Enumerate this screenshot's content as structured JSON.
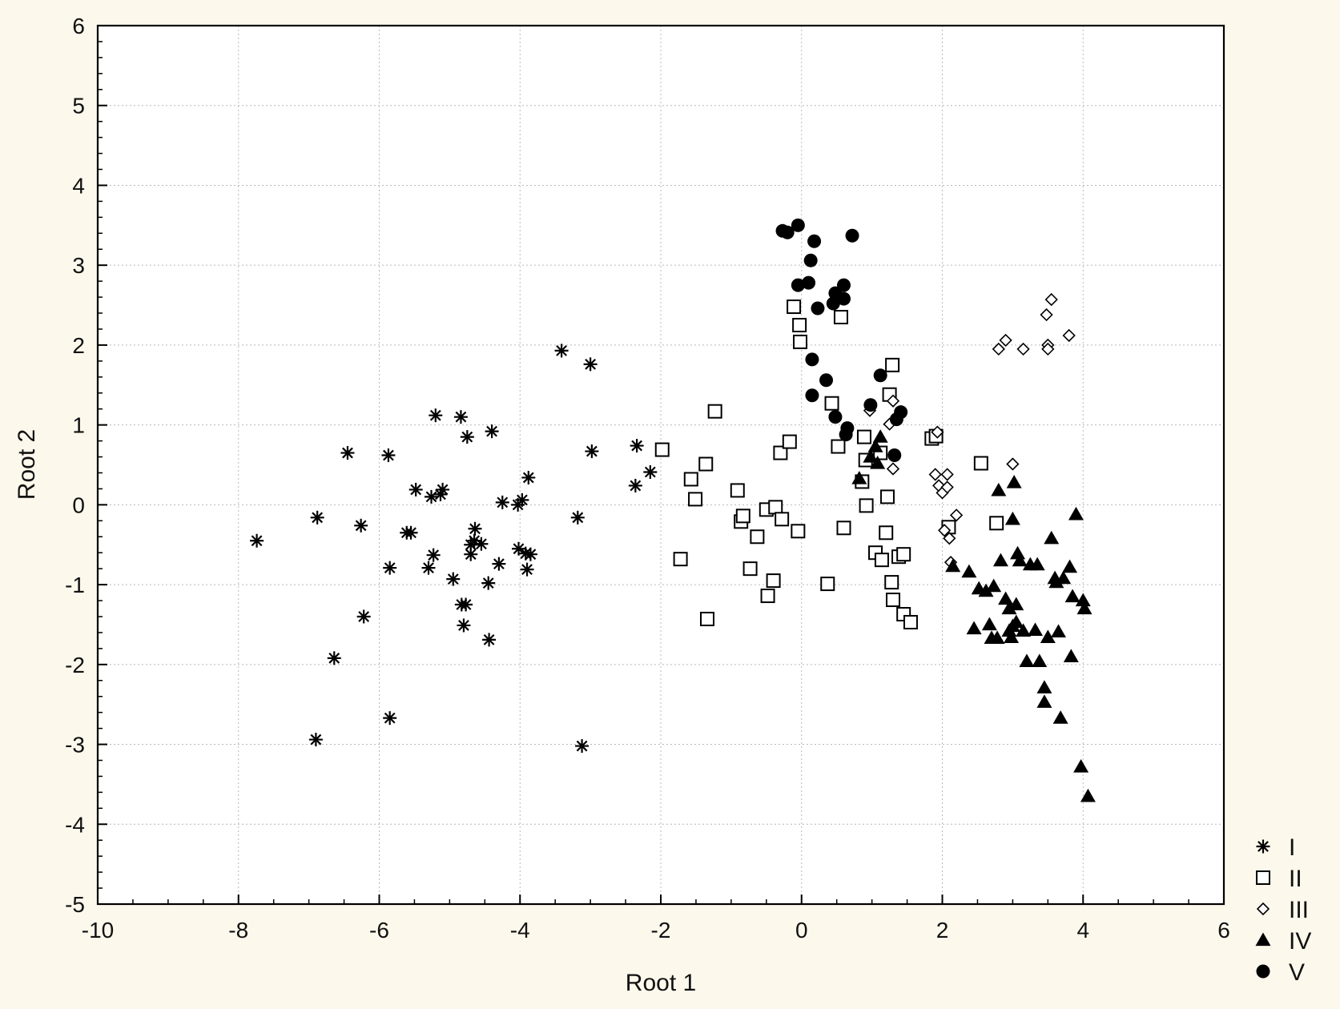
{
  "chart_data": {
    "type": "scatter",
    "xlabel": "Root 1",
    "ylabel": "Root 2",
    "xlim": [
      -10,
      6
    ],
    "ylim": [
      -5,
      6
    ],
    "x_ticks": [
      "-10",
      "-8",
      "-6",
      "-4",
      "-2",
      "0",
      "2",
      "4",
      "6"
    ],
    "y_ticks": [
      "-5",
      "-4",
      "-3",
      "-2",
      "-1",
      "0",
      "1",
      "2",
      "3",
      "4",
      "5",
      "6"
    ],
    "grid": true,
    "legend_position": "bottom-right",
    "series": [
      {
        "name": "I",
        "marker": "asterisk",
        "points": [
          [
            -7.74,
            -0.45
          ],
          [
            -6.88,
            -0.16
          ],
          [
            -6.9,
            -2.94
          ],
          [
            -6.64,
            -1.92
          ],
          [
            -6.45,
            0.65
          ],
          [
            -6.26,
            -0.26
          ],
          [
            -6.22,
            -1.4
          ],
          [
            -5.87,
            0.62
          ],
          [
            -5.85,
            -0.79
          ],
          [
            -5.85,
            -2.67
          ],
          [
            -5.61,
            -0.35
          ],
          [
            -5.55,
            -0.35
          ],
          [
            -5.48,
            0.19
          ],
          [
            -5.3,
            -0.79
          ],
          [
            -5.26,
            0.1
          ],
          [
            -5.23,
            -0.63
          ],
          [
            -5.2,
            1.12
          ],
          [
            -5.13,
            0.13
          ],
          [
            -5.1,
            0.19
          ],
          [
            -4.95,
            -0.93
          ],
          [
            -4.84,
            1.1
          ],
          [
            -4.83,
            -1.25
          ],
          [
            -4.8,
            -1.51
          ],
          [
            -4.77,
            -1.25
          ],
          [
            -4.75,
            0.85
          ],
          [
            -4.7,
            -0.5
          ],
          [
            -4.7,
            -0.62
          ],
          [
            -4.65,
            -0.45
          ],
          [
            -4.64,
            -0.3
          ],
          [
            -4.55,
            -0.49
          ],
          [
            -4.45,
            -0.98
          ],
          [
            -4.44,
            -1.69
          ],
          [
            -4.4,
            0.92
          ],
          [
            -4.3,
            -0.74
          ],
          [
            -4.25,
            0.03
          ],
          [
            -4.03,
            0.0
          ],
          [
            -4.02,
            -0.55
          ],
          [
            -3.97,
            0.06
          ],
          [
            -3.92,
            -0.61
          ],
          [
            -3.9,
            -0.81
          ],
          [
            -3.88,
            0.34
          ],
          [
            -3.85,
            -0.62
          ],
          [
            -3.41,
            1.93
          ],
          [
            -3.18,
            -0.16
          ],
          [
            -3.12,
            -3.02
          ],
          [
            -3.0,
            1.76
          ],
          [
            -2.98,
            0.67
          ],
          [
            -2.34,
            0.74
          ],
          [
            -2.36,
            0.24
          ],
          [
            -2.15,
            0.41
          ]
        ]
      },
      {
        "name": "II",
        "marker": "square",
        "points": [
          [
            -1.98,
            0.69
          ],
          [
            -1.72,
            -0.68
          ],
          [
            -1.57,
            0.32
          ],
          [
            -1.51,
            0.07
          ],
          [
            -1.36,
            0.51
          ],
          [
            -1.34,
            -1.43
          ],
          [
            -1.23,
            1.17
          ],
          [
            -0.91,
            0.18
          ],
          [
            -0.86,
            -0.21
          ],
          [
            -0.83,
            -0.14
          ],
          [
            -0.73,
            -0.8
          ],
          [
            -0.63,
            -0.4
          ],
          [
            -0.5,
            -0.06
          ],
          [
            -0.48,
            -1.14
          ],
          [
            -0.4,
            -0.95
          ],
          [
            -0.37,
            -0.03
          ],
          [
            -0.3,
            0.65
          ],
          [
            -0.28,
            -0.18
          ],
          [
            -0.17,
            0.79
          ],
          [
            -0.11,
            2.48
          ],
          [
            -0.05,
            -0.33
          ],
          [
            -0.03,
            2.25
          ],
          [
            -0.02,
            2.04
          ],
          [
            0.37,
            -0.99
          ],
          [
            0.43,
            1.27
          ],
          [
            0.52,
            0.73
          ],
          [
            0.56,
            2.35
          ],
          [
            0.6,
            -0.29
          ],
          [
            0.86,
            0.29
          ],
          [
            0.89,
            0.85
          ],
          [
            0.91,
            0.56
          ],
          [
            0.92,
            -0.01
          ],
          [
            1.05,
            -0.6
          ],
          [
            1.12,
            0.65
          ],
          [
            1.14,
            -0.69
          ],
          [
            1.2,
            -0.35
          ],
          [
            1.22,
            0.1
          ],
          [
            1.25,
            1.38
          ],
          [
            1.28,
            -0.97
          ],
          [
            1.29,
            1.75
          ],
          [
            1.3,
            -1.19
          ],
          [
            1.38,
            -0.65
          ],
          [
            1.45,
            -0.62
          ],
          [
            1.45,
            -1.37
          ],
          [
            1.55,
            -1.47
          ],
          [
            1.85,
            0.83
          ],
          [
            1.91,
            0.86
          ],
          [
            2.09,
            -0.28
          ],
          [
            2.55,
            0.52
          ],
          [
            2.77,
            -0.23
          ]
        ]
      },
      {
        "name": "III",
        "marker": "diamond",
        "points": [
          [
            0.97,
            1.18
          ],
          [
            1.25,
            1.01
          ],
          [
            1.3,
            1.3
          ],
          [
            1.3,
            0.45
          ],
          [
            1.9,
            0.38
          ],
          [
            1.93,
            0.91
          ],
          [
            1.95,
            0.24
          ],
          [
            2.0,
            0.15
          ],
          [
            2.03,
            -0.32
          ],
          [
            2.07,
            0.38
          ],
          [
            2.07,
            0.22
          ],
          [
            2.1,
            -0.42
          ],
          [
            2.12,
            -0.72
          ],
          [
            2.2,
            -0.13
          ],
          [
            2.8,
            1.95
          ],
          [
            2.9,
            2.06
          ],
          [
            3.0,
            0.51
          ],
          [
            3.15,
            1.95
          ],
          [
            3.48,
            2.38
          ],
          [
            3.5,
            2.0
          ],
          [
            3.5,
            1.95
          ],
          [
            3.55,
            2.57
          ],
          [
            3.8,
            2.12
          ]
        ]
      },
      {
        "name": "IV",
        "marker": "triangle",
        "points": [
          [
            0.82,
            0.33
          ],
          [
            0.98,
            0.6
          ],
          [
            1.05,
            0.73
          ],
          [
            1.08,
            0.52
          ],
          [
            1.12,
            0.85
          ],
          [
            2.15,
            -0.77
          ],
          [
            2.38,
            -0.84
          ],
          [
            2.45,
            -1.55
          ],
          [
            2.52,
            -1.05
          ],
          [
            2.62,
            -1.08
          ],
          [
            2.67,
            -1.5
          ],
          [
            2.7,
            -1.67
          ],
          [
            2.73,
            -1.02
          ],
          [
            2.78,
            -1.67
          ],
          [
            2.8,
            0.18
          ],
          [
            2.83,
            -0.7
          ],
          [
            2.9,
            -1.18
          ],
          [
            2.95,
            -1.58
          ],
          [
            2.95,
            -1.3
          ],
          [
            2.98,
            -1.66
          ],
          [
            3.0,
            -0.18
          ],
          [
            3.0,
            -1.52
          ],
          [
            3.02,
            0.28
          ],
          [
            3.05,
            -1.25
          ],
          [
            3.05,
            -1.47
          ],
          [
            3.07,
            -0.61
          ],
          [
            3.1,
            -0.7
          ],
          [
            3.15,
            -1.58
          ],
          [
            3.2,
            -1.96
          ],
          [
            3.25,
            -0.75
          ],
          [
            3.32,
            -1.57
          ],
          [
            3.35,
            -0.75
          ],
          [
            3.38,
            -1.96
          ],
          [
            3.45,
            -2.29
          ],
          [
            3.45,
            -2.47
          ],
          [
            3.5,
            -1.66
          ],
          [
            3.55,
            -0.42
          ],
          [
            3.6,
            -0.92
          ],
          [
            3.62,
            -0.97
          ],
          [
            3.65,
            -1.59
          ],
          [
            3.68,
            -2.67
          ],
          [
            3.72,
            -0.92
          ],
          [
            3.81,
            -0.78
          ],
          [
            3.83,
            -1.9
          ],
          [
            3.85,
            -1.15
          ],
          [
            3.9,
            -0.12
          ],
          [
            3.97,
            -3.28
          ],
          [
            4.0,
            -1.2
          ],
          [
            4.02,
            -1.3
          ],
          [
            4.07,
            -3.65
          ]
        ]
      },
      {
        "name": "V",
        "marker": "circle",
        "points": [
          [
            -0.27,
            3.43
          ],
          [
            -0.2,
            3.41
          ],
          [
            -0.05,
            3.5
          ],
          [
            -0.05,
            2.75
          ],
          [
            0.1,
            2.78
          ],
          [
            0.13,
            3.06
          ],
          [
            0.15,
            1.82
          ],
          [
            0.15,
            1.37
          ],
          [
            0.18,
            3.3
          ],
          [
            0.23,
            2.46
          ],
          [
            0.35,
            1.56
          ],
          [
            0.45,
            2.52
          ],
          [
            0.48,
            2.65
          ],
          [
            0.48,
            1.1
          ],
          [
            0.6,
            2.75
          ],
          [
            0.6,
            2.58
          ],
          [
            0.63,
            0.88
          ],
          [
            0.65,
            0.96
          ],
          [
            0.72,
            3.37
          ],
          [
            0.98,
            1.25
          ],
          [
            1.12,
            1.62
          ],
          [
            1.32,
            0.62
          ],
          [
            1.35,
            1.07
          ],
          [
            1.41,
            1.16
          ]
        ]
      }
    ]
  }
}
